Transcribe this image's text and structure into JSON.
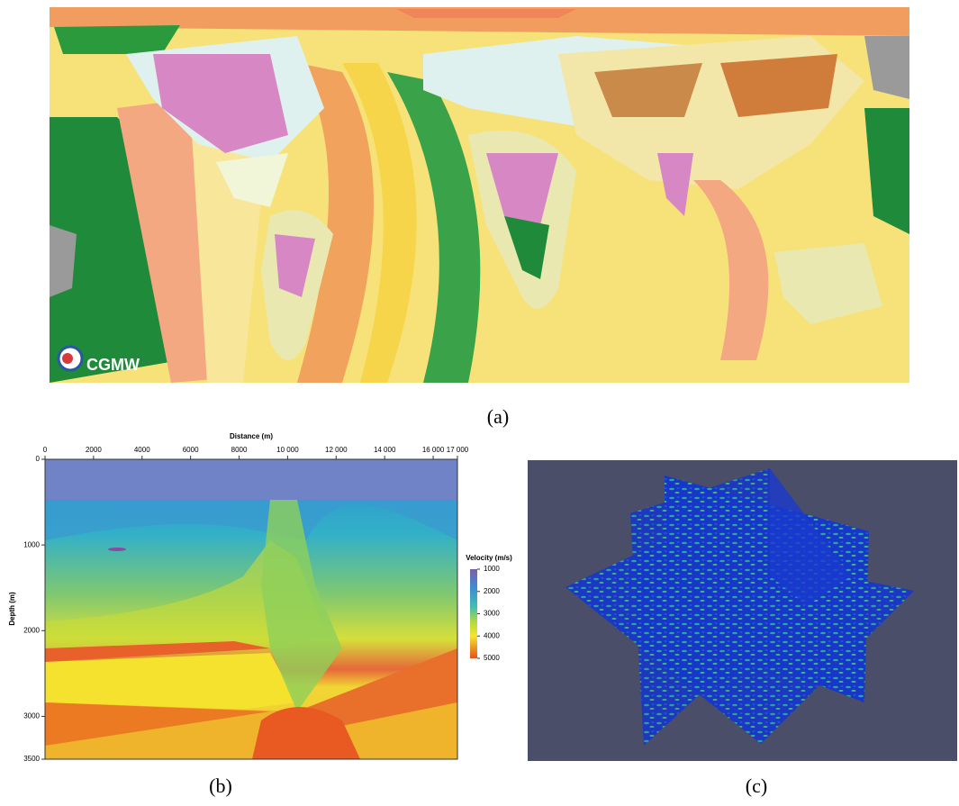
{
  "panel_a": {
    "logo": "CGMW",
    "caption": "(a)"
  },
  "panel_b": {
    "xlabel": "Distance (m)",
    "ylabel": "Depth (m)",
    "xlim": [
      0,
      17000
    ],
    "xticks": [
      0,
      2000,
      4000,
      6000,
      8000,
      {
        "value": 10000,
        "label": "10 000"
      },
      {
        "value": 12000,
        "label": "12 000"
      },
      {
        "value": 14000,
        "label": "14 000"
      },
      {
        "value": 16000,
        "label": "16 000"
      },
      {
        "value": 17000,
        "label": "17 000"
      }
    ],
    "ylim": [
      0,
      3500
    ],
    "yticks": [
      0,
      1000,
      2000,
      3000,
      3500
    ],
    "colorbar": {
      "title": "Velocity (m/s)",
      "lim": [
        1000,
        5000
      ],
      "ticks": [
        1000,
        2000,
        3000,
        4000,
        5000
      ]
    },
    "caption": "(b)"
  },
  "panel_c": {
    "caption": "(c)"
  }
}
